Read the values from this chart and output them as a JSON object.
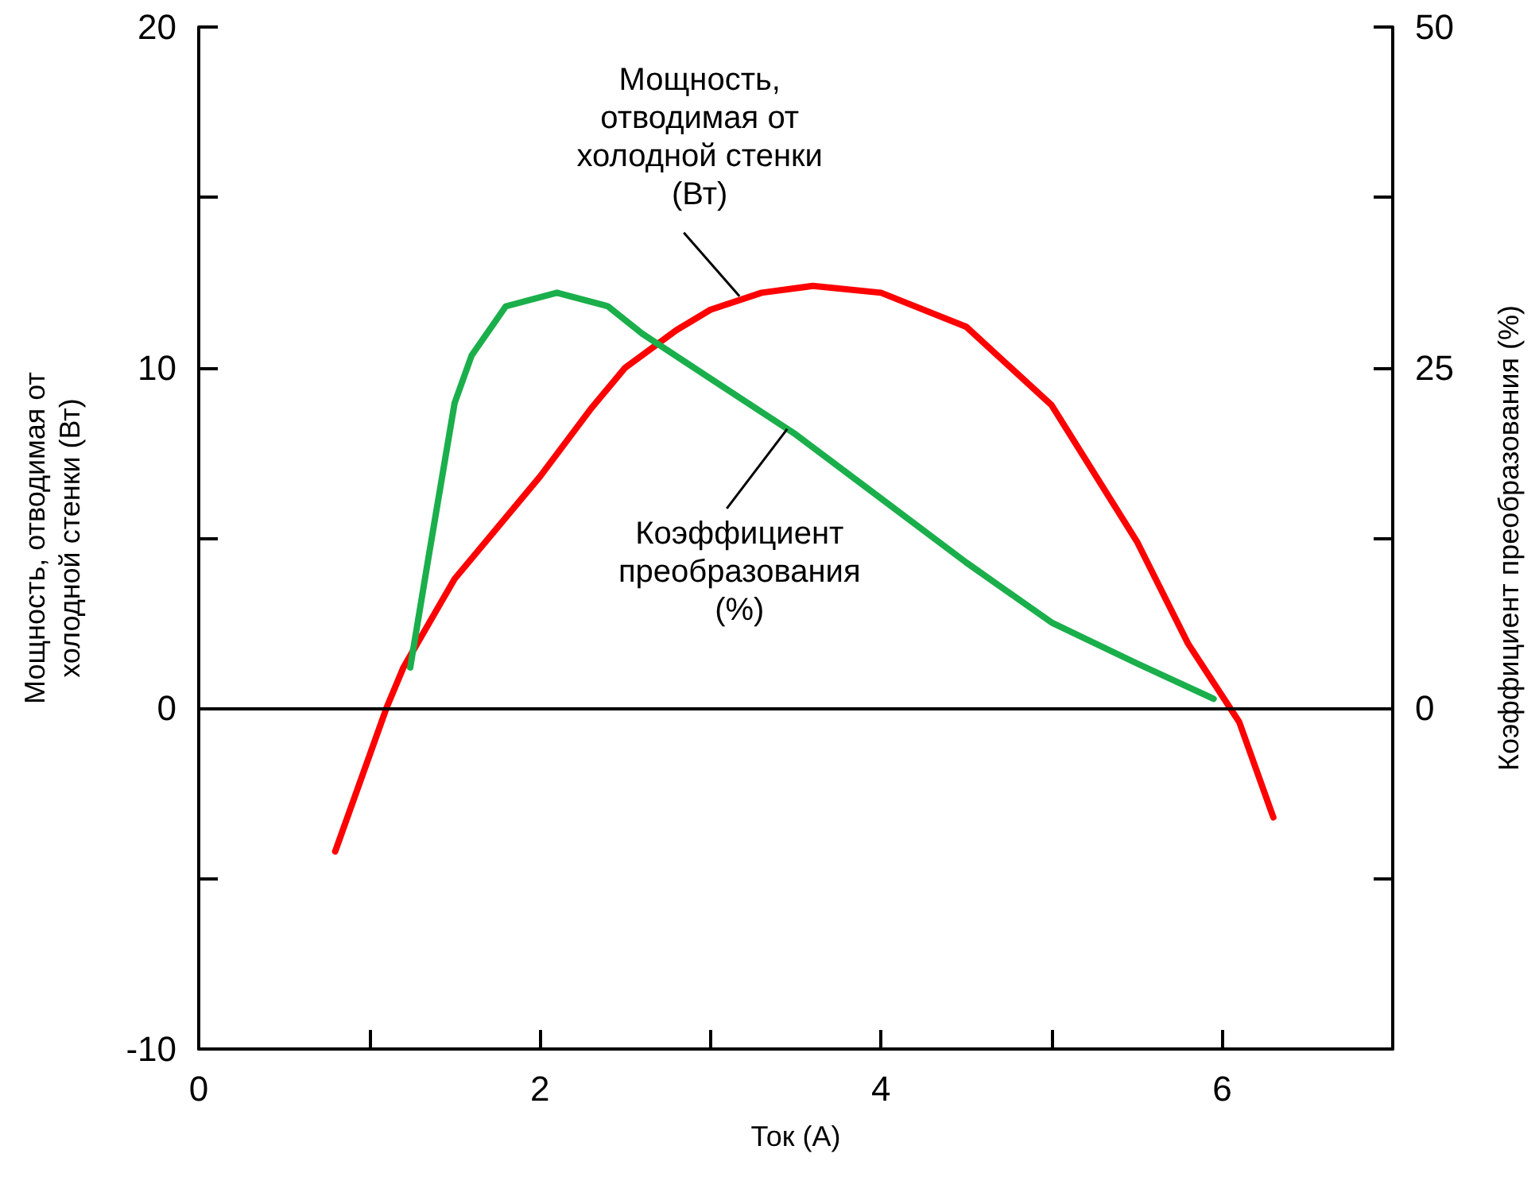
{
  "chart_data": {
    "type": "line",
    "xlabel": "Ток (A)",
    "ylabel": "Мощность, отводимая от холодной стенки (Вт)",
    "y2label": "Коэффициент преобразования (%)",
    "xlim": [
      0,
      7
    ],
    "xticks": [
      0,
      {
        "value": 1,
        "label": null
      },
      2,
      {
        "value": 3,
        "label": null
      },
      4,
      {
        "value": 5,
        "label": null
      },
      6,
      {
        "value": 7,
        "label": null
      }
    ],
    "ylim": [
      -10,
      20
    ],
    "yticks": [
      -10,
      {
        "value": -5,
        "label": null
      },
      0,
      {
        "value": 5,
        "label": null
      },
      10,
      {
        "value": 15,
        "label": null
      },
      20
    ],
    "y2lim": [
      -25,
      50
    ],
    "y2ticks": [
      {
        "value": -25,
        "label": null
      },
      {
        "value": -12.5,
        "label": null
      },
      0,
      {
        "value": 12.5,
        "label": null
      },
      25,
      {
        "value": 37.5,
        "label": null
      },
      50
    ],
    "grid": false,
    "marker": "none",
    "line_style": "solid",
    "series": [
      {
        "color": "#ff0000",
        "x": [
          0.8,
          1.1,
          1.2,
          1.5,
          2.0,
          2.3,
          2.5,
          2.8,
          3.0,
          3.3,
          3.6,
          4.0,
          4.5,
          5.0,
          5.5,
          5.8,
          6.1,
          6.3
        ],
        "values": [
          -4.2,
          0,
          1.2,
          3.8,
          6.8,
          8.8,
          10,
          11.1,
          11.7,
          12.2,
          12.4,
          12.2,
          11.2,
          8.9,
          4.9,
          1.9,
          -0.4,
          -3.2
        ]
      },
      {
        "color": "#1aaf4b",
        "axis": "y2",
        "x": [
          1.24,
          1.35,
          1.5,
          1.6,
          1.8,
          2.1,
          2.4,
          2.6,
          3.0,
          3.5,
          4.0,
          4.5,
          5.0,
          5.5,
          5.95
        ],
        "values": [
          3,
          11.3,
          22.4,
          25.9,
          29.5,
          30.5,
          29.5,
          27.5,
          24.2,
          20.1,
          15.4,
          10.7,
          6.3,
          3.3,
          0.7
        ]
      }
    ],
    "ref_lines": [
      {
        "axis": "y",
        "value": 0,
        "color": "#000000"
      }
    ],
    "annotations": [
      {
        "text": "Мощность, отводимая от холодной стенки (Вт)",
        "x": 3.17,
        "y": 12.1
      },
      {
        "text": "Коэффициент преобразования (%)",
        "x": 3.45,
        "y": 8.2
      }
    ]
  }
}
